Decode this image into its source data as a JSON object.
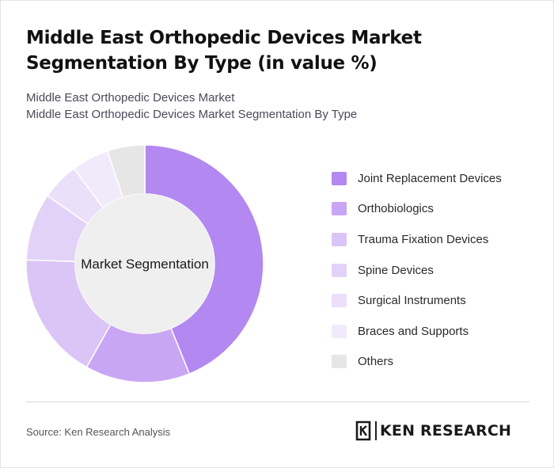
{
  "header": {
    "title": "Middle East Orthopedic Devices Market Segmentation By Type (in value %)",
    "subtitle_1": "Middle East Orthopedic Devices Market",
    "subtitle_2": "Middle East Orthopedic Devices Market Segmentation By Type"
  },
  "chart_data": {
    "type": "pie",
    "donut": true,
    "center_label": "Market Segmentation",
    "legend_position": "right",
    "categories": [
      "Joint Replacement Devices",
      "Orthobiologics",
      "Trauma Fixation Devices",
      "Spine Devices",
      "Surgical Instruments",
      "Braces and Supports",
      "Others"
    ],
    "values": [
      43,
      14,
      17,
      9,
      5,
      5,
      5
    ],
    "colors": [
      "#b388f0",
      "#c9a6f3",
      "#dbc4f6",
      "#e3d2f8",
      "#ebdffa",
      "#f1eafb",
      "#e6e6e6"
    ]
  },
  "footer": {
    "source": "Source: Ken Research Analysis",
    "brand": "KEN RESEARCH"
  }
}
